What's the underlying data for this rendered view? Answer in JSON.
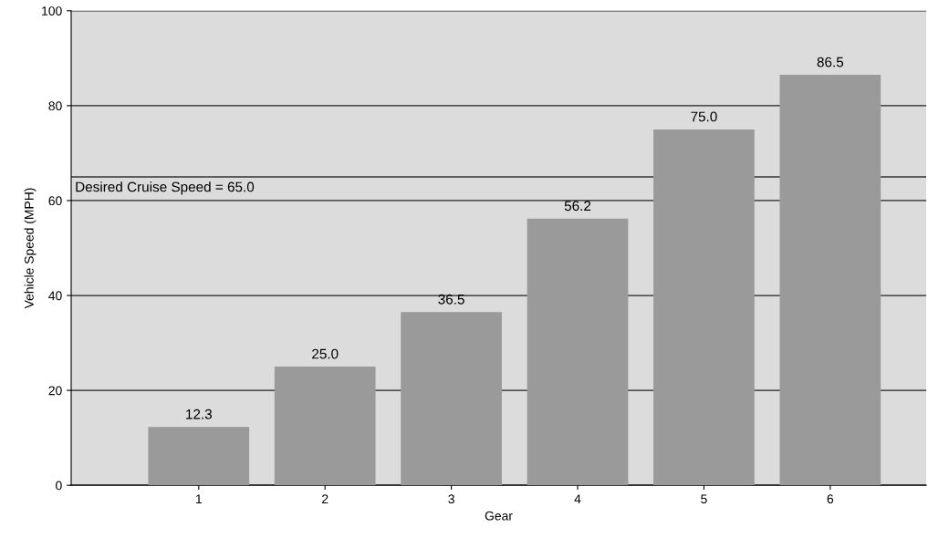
{
  "chart_data": {
    "type": "bar",
    "xlabel": "Gear",
    "ylabel": "Vehicle Speed (MPH)",
    "categories": [
      "1",
      "2",
      "3",
      "4",
      "5",
      "6"
    ],
    "values": [
      12.3,
      25.0,
      36.5,
      56.2,
      75.0,
      86.5
    ],
    "value_labels": [
      "12.3",
      "25.0",
      "36.5",
      "56.2",
      "75.0",
      "86.5"
    ],
    "color": "#9a9a9a",
    "ylim": [
      0,
      100
    ],
    "yticks": [
      0,
      20,
      40,
      60,
      80,
      100
    ],
    "grid": "y",
    "ref_lines": [
      {
        "axis": "y",
        "value": 65.0,
        "label": "Desired Cruise Speed = 65.0",
        "color": "#333333",
        "line_style": "solid"
      }
    ]
  }
}
